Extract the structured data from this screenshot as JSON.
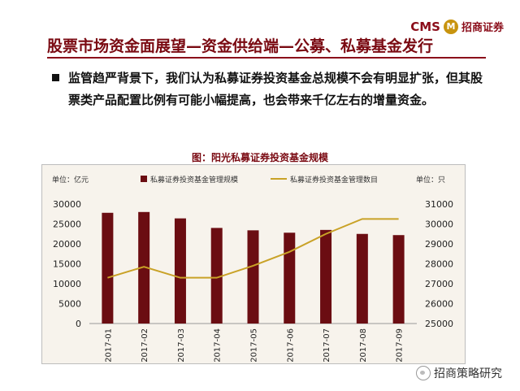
{
  "header": {
    "logo_latin": "CMS",
    "logo_mark": "M",
    "logo_cn": "招商证券",
    "title": "股票市场资金面展望—资金供给端—公募、私募基金发行"
  },
  "bullet": {
    "text": "监管趋严背景下，我们认为私募证券投资基金总规模不会有明显扩张，但其股票类产品配置比例有可能小幅提高，也会带来千亿左右的增量资金。"
  },
  "chart_data": {
    "type": "bar",
    "title": "图：阳光私募证券投资基金规模",
    "categories": [
      "2017-01",
      "2017-02",
      "2017-03",
      "2017-04",
      "2017-05",
      "2017-06",
      "2017-07",
      "2017-08",
      "2017-09"
    ],
    "left_unit": "单位：亿元",
    "right_unit": "单位：只",
    "ylim_left": [
      0,
      30000
    ],
    "yticks_left": [
      0,
      5000,
      10000,
      15000,
      20000,
      25000,
      30000
    ],
    "ylim_right": [
      25000,
      31000
    ],
    "yticks_right": [
      25000,
      26000,
      27000,
      28000,
      29000,
      30000,
      31000
    ],
    "legend_position": "top",
    "series": [
      {
        "name": "私募证券投资基金管理规模",
        "kind": "bar",
        "axis": "left",
        "color": "#6b0d12",
        "values": [
          27800,
          28000,
          26400,
          24000,
          23400,
          22800,
          23500,
          22500,
          22200
        ]
      },
      {
        "name": "私募证券投资基金管理数目",
        "kind": "line",
        "axis": "right",
        "color": "#c9a227",
        "values": [
          27300,
          27850,
          27300,
          27300,
          27900,
          28600,
          29500,
          30250,
          30250
        ]
      }
    ]
  },
  "watermark": {
    "text": "招商策略研究"
  }
}
